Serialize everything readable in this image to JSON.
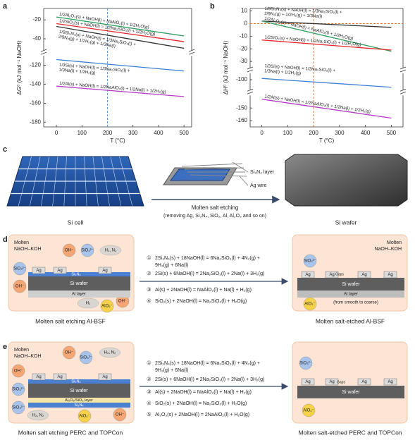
{
  "panel_labels": [
    "a",
    "b",
    "c",
    "d",
    "e"
  ],
  "chart_data": [
    {
      "type": "line",
      "xlabel": "T (°C)",
      "ylabel": "ΔG⁰ (kJ mol⁻¹ NaOH)",
      "x": [
        0,
        500
      ],
      "xlim": [
        -50,
        530
      ],
      "xticks": [
        0,
        100,
        200,
        300,
        400,
        500
      ],
      "ylim": [
        -185,
        -8
      ],
      "y_segments": [
        [
          -185,
          -110
        ],
        [
          -52,
          -8
        ]
      ],
      "yticks": [
        -20,
        -40,
        -120,
        -140,
        -160,
        -180
      ],
      "vline": 200,
      "guide_color": "#5b9bd5",
      "series": [
        {
          "name": "1/2Al₂O₃(s) + NaOH(l) = NaAlO₂(l) + 1/2H₂O(g)",
          "color": "#2f9e5f",
          "values": [
            -17,
            -37
          ]
        },
        {
          "name": "1/2SiO₂(s) + NaOH(l) = 1/2Na₂SiO₃(l) + 1/2H₂O(g)",
          "color": "#e5262c",
          "values": [
            -24,
            -43
          ]
        },
        {
          "name": "1/9Si₃N₄(s) + NaOH(l) = 1/3Na₂SiO₃(l) + 2/9N₂(g) + 1/2H₂(g) + 1/3Na(l)",
          "color": "#333333",
          "values": [
            -27,
            -50
          ]
        },
        {
          "name": "1/3Si(s) + NaOH(l) = 1/3Na₂SiO₃(l) + 1/3Na(l) + 1/2H₂(g)",
          "color": "#3d7fd6",
          "values": [
            -114,
            -126
          ]
        },
        {
          "name": "1/2Al(s) + NaOH(l) = 1/2NaAlO₂(l) + 1/2Na(l) + 1/2H₂(g)",
          "color": "#b23bc4",
          "values": [
            -142,
            -153
          ]
        }
      ]
    },
    {
      "type": "line",
      "xlabel": "T (°C)",
      "ylabel": "ΔH⁰ (kJ mol⁻¹ NaOH)",
      "x": [
        0,
        500
      ],
      "xlim": [
        -45,
        545
      ],
      "xticks": [
        0,
        100,
        200,
        300,
        400,
        500
      ],
      "ylim": [
        -165,
        12
      ],
      "y_segments": [
        [
          -165,
          -140
        ],
        [
          -108,
          -95
        ],
        [
          -35,
          12
        ]
      ],
      "yticks": [
        10,
        0,
        -10,
        -20,
        -30,
        -100,
        -150,
        -160
      ],
      "vline": 200,
      "hline": 0,
      "guide_color": "#e07b39",
      "series": [
        {
          "name": "1/9Si₃N₄(s) + NaOH(l) = 1/3Na₂SiO₃(l) + 2/9N₂(g) + 1/2H₂(g) + 1/3Na(l)",
          "color": "#333333",
          "values": [
            2,
            -3
          ]
        },
        {
          "name": "1/2Al₂O₃(s) + NaOH(l) = NaAlO₂(l) + 1/2H₂O(g)",
          "color": "#2f9e5f",
          "values": [
            2,
            -22
          ]
        },
        {
          "name": "1/2SiO₂(s) + NaOH(l) = 1/2Na₂SiO₃(l) + 1/2H₂O(g)",
          "color": "#e5262c",
          "values": [
            -13,
            -21
          ]
        },
        {
          "name": "1/3Si(s) + NaOH(l) = 1/3Na₂SiO₃(l) + 1/3Na(l) + 1/2H₂(g)",
          "color": "#3d7fd6",
          "values": [
            -99,
            -106
          ]
        },
        {
          "name": "1/2Al(s) + NaOH(l) = 1/2NaAlO₂(l) + 1/2Na(l) + 1/2H₂(g)",
          "color": "#b23bc4",
          "values": [
            -143,
            -158
          ]
        }
      ]
    }
  ],
  "panel_c": {
    "left_caption": "Si cell",
    "setup_labels": [
      "Si₃N₄ layer",
      "Ag wire"
    ],
    "arrow_label": "Molten salt etching",
    "arrow_note": "(removing Ag, Si₃N₄, SiO₂, Al, Al₂O₃ and so on)",
    "right_caption": "Si wafer"
  },
  "panel_d": {
    "left": {
      "medium": [
        "Molten",
        "NaOH–KOH"
      ],
      "species": [
        "OH⁻",
        "SiO₃²⁻",
        "H₂, N₂",
        "SiO₃²⁻",
        "OH⁻",
        "H₂",
        "AlO₂⁻",
        "OH⁻"
      ],
      "ag": [
        "Ag",
        "Ag",
        "Ag"
      ],
      "layers": [
        "Si₃N₄",
        "Si wafer",
        "Al layer"
      ],
      "caption": "Molten salt etching Al-BSF"
    },
    "equations": [
      {
        "number": "①",
        "lines": [
          "2Si₃N₄(s) + 18NaOH(l) = 6Na₂SiO₃(l) + 4N₂(g) +",
          "9H₂(g) + 6Na(l)"
        ]
      },
      {
        "number": "②",
        "lines": [
          "2Si(s) + 6NaOH(l) = 2Na₂SiO₃(l) + 2Na(l) + 3H₂(g)"
        ]
      },
      {
        "number": "③",
        "lines": [
          "Al(s) + 2NaOH(l) = NaAlO₂(l) + Na(l) + H₂(g)"
        ]
      },
      {
        "number": "④",
        "lines": [
          "SiO₂(s) + 2NaOH(l) = Na₂SiO₃(l) + H₂O(g)"
        ]
      }
    ],
    "right": {
      "medium": [
        "Molten",
        "NaOH–KOH"
      ],
      "species": [
        "SiO₃²⁻",
        "AlO₂⁻"
      ],
      "ag": [
        "Ag",
        "Ag",
        "Ag",
        "Ag"
      ],
      "gaps": "Gaps",
      "layers": [
        "Si wafer",
        "Al layer"
      ],
      "note": "(from smooth to coarse)",
      "caption": "Molten salt-etched Al-BSF"
    }
  },
  "panel_e": {
    "left": {
      "medium": [
        "Molten",
        "NaOH–KOH"
      ],
      "species": [
        "OH⁻",
        "SiO₃²⁻",
        "H₂, N₂",
        "OH⁻",
        "SiO₃²⁻",
        "SiO₃²⁻",
        "H₂, N₂",
        "AlO₂⁻",
        "OH⁻"
      ],
      "ag": [
        "Ag",
        "Ag",
        "Ag"
      ],
      "layers": [
        "Si₃N₄",
        "Si wafer",
        "Al₂O₃/SiO₂ layer",
        "Si₃N₄"
      ],
      "caption": "Molten salt etching PERC and TOPCon"
    },
    "equations": [
      {
        "number": "①",
        "lines": [
          "2Si₃N₄(s) + 18NaOH(l) = 6Na₂SiO₃(l) + 4N₂(g) +",
          "9H₂(g) + 6Na(l)"
        ]
      },
      {
        "number": "②",
        "lines": [
          "2Si(s) + 6NaOH(l) = 2Na₂SiO₃(l) + 2Na(l) + 3H₂(g)"
        ]
      },
      {
        "number": "③",
        "lines": [
          "Al(s) + 2NaOH(l) = NaAlO₂(l) + Na(l) + H₂(g)"
        ]
      },
      {
        "number": "④",
        "lines": [
          "SiO₂(s) + 2NaOH(l) = Na₂SiO₃(l) + H₂O(g)"
        ]
      },
      {
        "number": "⑤",
        "lines": [
          "Al₂O₃(s) + 2NaOH(l) = 2NaAlO₂(l) + H₂O(g)"
        ]
      }
    ],
    "right": {
      "species": [
        "SiO₃²⁻",
        "AlO₂⁻"
      ],
      "ag": [
        "Ag",
        "Ag",
        "Ag",
        "Ag"
      ],
      "gaps": "Gaps",
      "layers": [
        "Si wafer"
      ],
      "caption": "Molten salt-etched PERC and TOPCon"
    }
  }
}
